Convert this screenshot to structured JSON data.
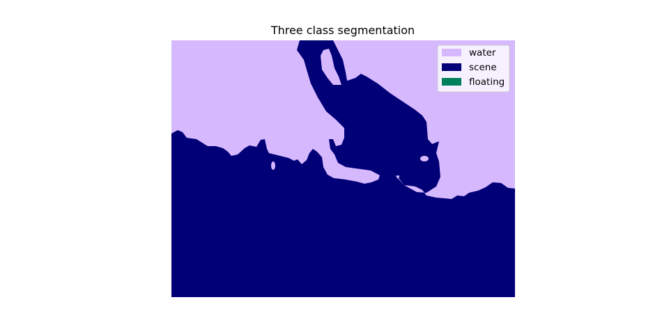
{
  "chart_data": {
    "type": "heatmap",
    "title": "Three class segmentation",
    "xlabel": "",
    "ylabel": "",
    "axes_visible": false,
    "grid": false,
    "classes": [
      {
        "name": "water",
        "color": "#d6b8ff"
      },
      {
        "name": "scene",
        "color": "#020076"
      },
      {
        "name": "floating",
        "color": "#00805a"
      }
    ],
    "legend": {
      "placement": "upper-right",
      "entries": [
        "water",
        "scene",
        "floating"
      ]
    }
  }
}
